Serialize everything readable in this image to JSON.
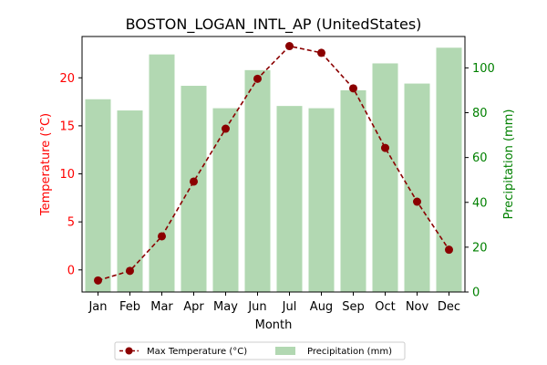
{
  "chart_data": {
    "type": "bar",
    "title": "BOSTON_LOGAN_INTL_AP (UnitedStates)",
    "xlabel": "Month",
    "ylabel_left": "Temperature (°C)",
    "ylabel_right": "Precipitation (mm)",
    "categories": [
      "Jan",
      "Feb",
      "Mar",
      "Apr",
      "May",
      "Jun",
      "Jul",
      "Aug",
      "Sep",
      "Oct",
      "Nov",
      "Dec"
    ],
    "left_axis": {
      "ylim": [
        -2.3,
        24.3
      ],
      "ticks": [
        0,
        5,
        10,
        15,
        20
      ],
      "color": "#ff0000"
    },
    "right_axis": {
      "ylim": [
        0,
        114
      ],
      "ticks": [
        0,
        20,
        40,
        60,
        80,
        100
      ],
      "color": "#008000"
    },
    "series": [
      {
        "name": "Max Temperature (°C)",
        "type": "line",
        "axis": "left",
        "color": "#8b0000",
        "values": [
          -1.1,
          -0.1,
          3.5,
          9.2,
          14.7,
          19.9,
          23.3,
          22.6,
          18.9,
          12.7,
          7.1,
          2.1
        ]
      },
      {
        "name": "Precipitation (mm)",
        "type": "bar",
        "axis": "right",
        "color": "#b2d8b2",
        "values": [
          86,
          81,
          106,
          92,
          82,
          99,
          83,
          82,
          90,
          102,
          93,
          109
        ]
      }
    ],
    "legend": "bottom-center"
  }
}
